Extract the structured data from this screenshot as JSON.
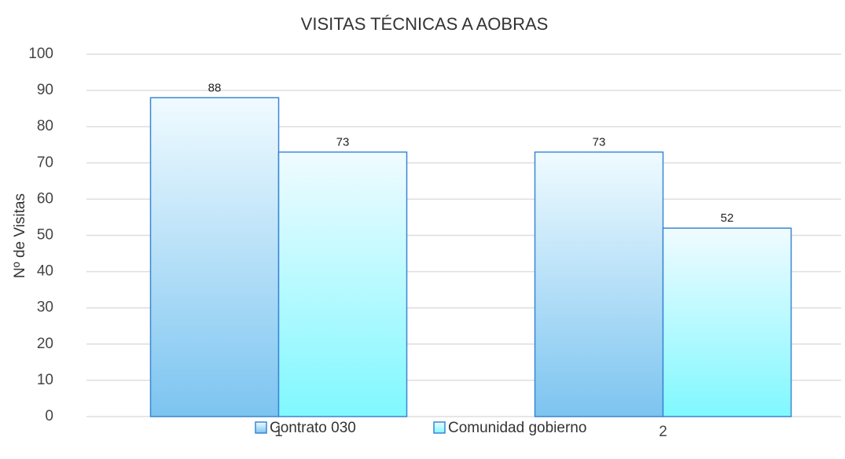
{
  "chart_data": {
    "type": "bar",
    "title": "VISITAS TÉCNICAS A AOBRAS",
    "y_label": "Nº de Visitas",
    "categories": [
      "1",
      "2"
    ],
    "series": [
      {
        "name": "Contrato 030",
        "color": "#7cc4f0",
        "values": [
          88,
          73
        ]
      },
      {
        "name": "Comunidad gobierno",
        "color": "#80f8ff",
        "values": [
          73,
          52
        ]
      }
    ],
    "ylim": [
      0,
      100
    ],
    "yticks": [
      0,
      10,
      20,
      30,
      40,
      50,
      60,
      70,
      80,
      90,
      100
    ],
    "grid": true,
    "legend": "bottom"
  }
}
